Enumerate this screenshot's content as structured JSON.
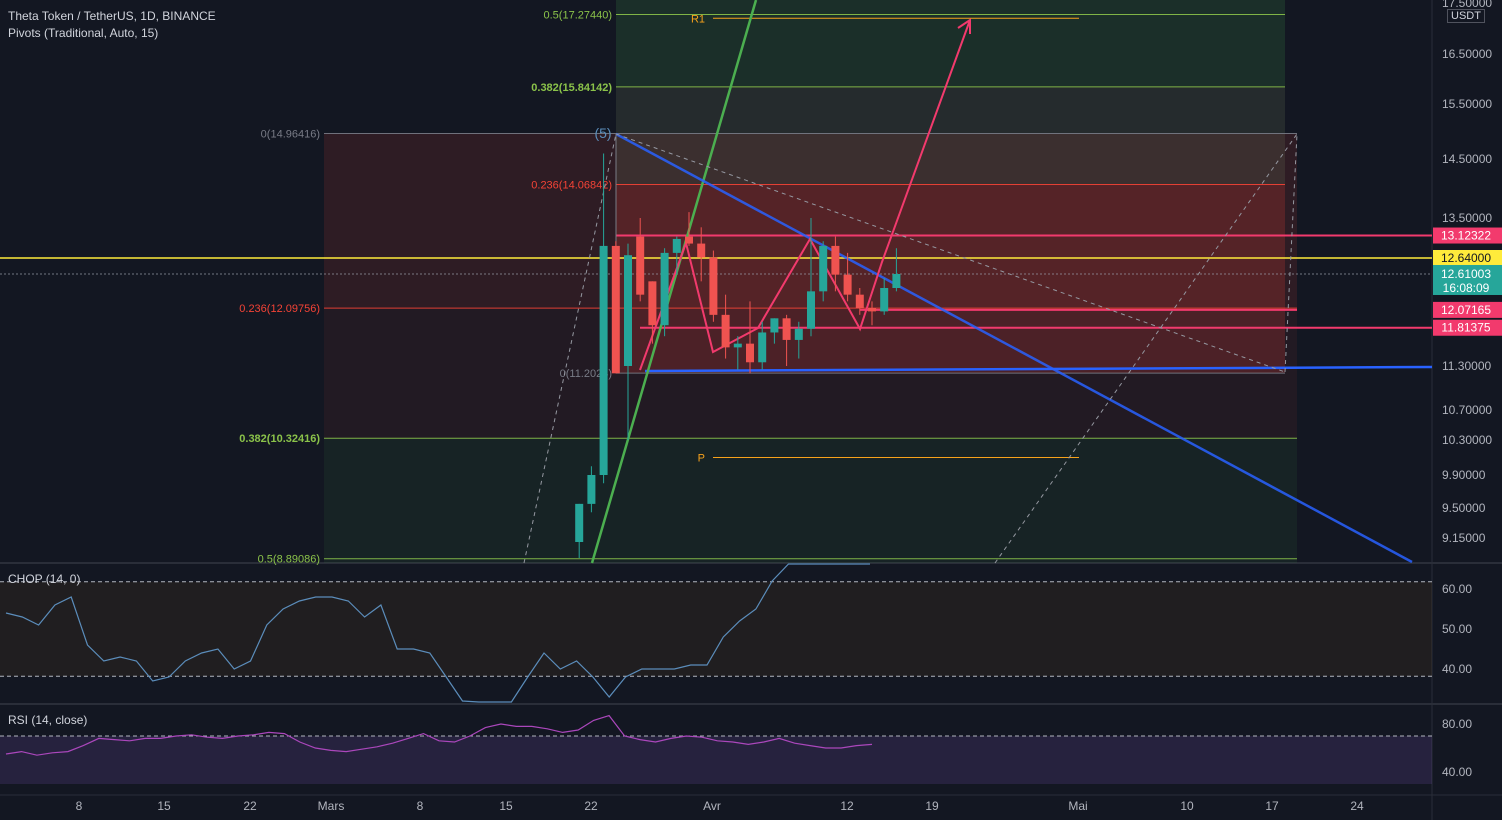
{
  "header": {
    "symbol_line": "Theta Token / TetherUS, 1D, BINANCE",
    "indicator_line": "Pivots (Traditional, Auto, 15)",
    "currency": "USDT"
  },
  "colors": {
    "background": "#131722",
    "up": "#26a69a",
    "down": "#ef5350",
    "trendline": "#2962ff",
    "pattern": "#f23a6d",
    "fib_green": "#8bc34a",
    "fib_red": "#f44336",
    "price_line": "#ffeb3b",
    "chop": "#5b8dbb",
    "rsi": "#ab47bc"
  },
  "chart_data": [
    {
      "type": "candlestick",
      "name": "Theta Token / TetherUS, 1D, BINANCE",
      "ylim": [
        9.0,
        17.5
      ],
      "y_ticks": [
        "17.50000",
        "16.50000",
        "15.50000",
        "14.50000",
        "13.50000",
        "11.30000",
        "10.70000",
        "10.30000",
        "9.90000",
        "9.50000",
        "9.15000"
      ],
      "y_tick_values": [
        17.5,
        16.5,
        15.5,
        14.5,
        13.5,
        11.3,
        10.7,
        10.3,
        9.9,
        9.5,
        9.15
      ],
      "x_ticks": [
        "8",
        "15",
        "22",
        "Mars",
        "8",
        "15",
        "22",
        "Avr",
        "12",
        "19",
        "Mai",
        "10",
        "17",
        "24"
      ],
      "candles": [
        {
          "date": "Mar 20",
          "o": 9.1,
          "h": 9.55,
          "l": 8.9,
          "c": 9.55
        },
        {
          "date": "Mar 21",
          "o": 9.55,
          "h": 10.0,
          "l": 9.45,
          "c": 9.9
        },
        {
          "date": "Mar 22",
          "o": 9.9,
          "h": 14.6,
          "l": 9.8,
          "c": 12.9
        },
        {
          "date": "Mar 23",
          "o": 12.9,
          "h": 13.0,
          "l": 11.2,
          "c": 11.2
        },
        {
          "date": "Mar 24",
          "o": 11.3,
          "h": 12.95,
          "l": 10.3,
          "c": 12.7
        },
        {
          "date": "Mar 25",
          "o": 13.1,
          "h": 13.5,
          "l": 12.2,
          "c": 12.3
        },
        {
          "date": "Mar 26",
          "o": 12.5,
          "h": 12.5,
          "l": 11.6,
          "c": 11.85
        },
        {
          "date": "Mar 27",
          "o": 11.85,
          "h": 12.85,
          "l": 11.7,
          "c": 12.75
        },
        {
          "date": "Mar 28",
          "o": 12.75,
          "h": 13.1,
          "l": 12.6,
          "c": 13.05
        },
        {
          "date": "Mar 29",
          "o": 13.1,
          "h": 13.6,
          "l": 12.9,
          "c": 12.95
        },
        {
          "date": "Mar 30",
          "o": 12.95,
          "h": 13.3,
          "l": 12.5,
          "c": 12.65
        },
        {
          "date": "Mar 31",
          "o": 12.65,
          "h": 12.8,
          "l": 11.9,
          "c": 12.0
        },
        {
          "date": "Apr 1",
          "o": 12.0,
          "h": 12.3,
          "l": 11.4,
          "c": 11.55
        },
        {
          "date": "Apr 2",
          "o": 11.55,
          "h": 11.7,
          "l": 11.25,
          "c": 11.6
        },
        {
          "date": "Apr 3",
          "o": 11.6,
          "h": 12.2,
          "l": 11.2,
          "c": 11.35
        },
        {
          "date": "Apr 4",
          "o": 11.35,
          "h": 11.9,
          "l": 11.25,
          "c": 11.75
        },
        {
          "date": "Apr 5",
          "o": 11.75,
          "h": 11.95,
          "l": 11.6,
          "c": 11.95
        },
        {
          "date": "Apr 6",
          "o": 11.95,
          "h": 12.0,
          "l": 11.3,
          "c": 11.65
        },
        {
          "date": "Apr 7",
          "o": 11.65,
          "h": 11.9,
          "l": 11.4,
          "c": 11.8
        },
        {
          "date": "Apr 8",
          "o": 11.8,
          "h": 13.5,
          "l": 11.7,
          "c": 12.35
        },
        {
          "date": "Apr 9",
          "o": 12.35,
          "h": 13.0,
          "l": 12.2,
          "c": 12.9
        },
        {
          "date": "Apr 10",
          "o": 12.9,
          "h": 13.1,
          "l": 12.35,
          "c": 12.6
        },
        {
          "date": "Apr 11",
          "o": 12.6,
          "h": 12.75,
          "l": 12.2,
          "c": 12.3
        },
        {
          "date": "Apr 12",
          "o": 12.3,
          "h": 12.4,
          "l": 12.0,
          "c": 12.1
        },
        {
          "date": "Apr 13",
          "o": 12.1,
          "h": 12.2,
          "l": 11.85,
          "c": 12.05
        },
        {
          "date": "Apr 14",
          "o": 12.05,
          "h": 12.55,
          "l": 12.0,
          "c": 12.4
        },
        {
          "date": "Apr 15",
          "o": 12.4,
          "h": 12.85,
          "l": 12.35,
          "c": 12.61
        }
      ],
      "price_labels": [
        {
          "text": "13.12322",
          "value": 13.12322,
          "color": "#f23a6d"
        },
        {
          "text": "12.64000",
          "value": 12.64,
          "color": "#ffeb3b"
        },
        {
          "text": "12.61003",
          "value": 12.61003,
          "color": "#26a69a",
          "sub": "16:08:09"
        },
        {
          "text": "12.07165",
          "value": 12.07165,
          "color": "#f23a6d"
        },
        {
          "text": "11.81375",
          "value": 11.81375,
          "color": "#f23a6d"
        }
      ],
      "fib_retracement_1": {
        "levels": [
          {
            "label": "0(14.96416)",
            "value": 14.96416,
            "color": "#787b86"
          },
          {
            "label": "0.236(12.09756)",
            "value": 12.09756,
            "color": "#f44336"
          },
          {
            "label": "0.382(10.32416)",
            "value": 10.32416,
            "color": "#8bc34a"
          },
          {
            "label": "0.5(8.89086)",
            "value": 8.89086,
            "color": "#8bc34a"
          }
        ]
      },
      "fib_retracement_2": {
        "levels": [
          {
            "label": "0.5(17.27440)",
            "value": 17.2744,
            "color": "#8bc34a"
          },
          {
            "label": "0.382(15.84142)",
            "value": 15.84142,
            "color": "#8bc34a"
          },
          {
            "label": "0.236(14.06842)",
            "value": 14.06842,
            "color": "#f44336"
          },
          {
            "label": "0(11.2024)",
            "value": 11.2024,
            "color": "#787b86"
          }
        ]
      },
      "pivots": [
        {
          "label": "R1",
          "value": 17.2,
          "color": "#f7a21b"
        },
        {
          "label": "P",
          "value": 10.1,
          "color": "#f7a21b"
        }
      ],
      "wave_label": "(5)"
    },
    {
      "type": "line",
      "name": "CHOP (14, 0)",
      "y_ticks": [
        "60.00",
        "50.00",
        "40.00"
      ],
      "y_tick_values": [
        60,
        50,
        40
      ],
      "band": [
        38.2,
        61.8
      ],
      "values": [
        54,
        53,
        51,
        56,
        58,
        46,
        42,
        43,
        42,
        37,
        38,
        42,
        44,
        45,
        40,
        42,
        51,
        55,
        57,
        58,
        58,
        57,
        53,
        56,
        45,
        45,
        44,
        38,
        32,
        30,
        28,
        26,
        38,
        44,
        40,
        42,
        38,
        33,
        38,
        40,
        40,
        40,
        41,
        41,
        48,
        52,
        55,
        62,
        67,
        75,
        80,
        85,
        80,
        73
      ]
    },
    {
      "type": "line",
      "name": "RSI (14, close)",
      "y_ticks": [
        "80.00",
        "40.00"
      ],
      "y_tick_values": [
        80,
        40
      ],
      "band": [
        30,
        70
      ],
      "values": [
        55,
        57,
        54,
        56,
        57,
        62,
        68,
        67,
        66,
        68,
        68,
        70,
        71,
        69,
        68,
        70,
        71,
        73,
        72,
        65,
        60,
        58,
        57,
        59,
        61,
        64,
        68,
        72,
        66,
        65,
        70,
        77,
        80,
        78,
        78,
        76,
        73,
        75,
        83,
        87,
        70,
        67,
        65,
        68,
        70,
        69,
        66,
        65,
        63,
        65,
        68,
        64,
        62,
        60,
        60,
        62,
        63
      ]
    }
  ]
}
